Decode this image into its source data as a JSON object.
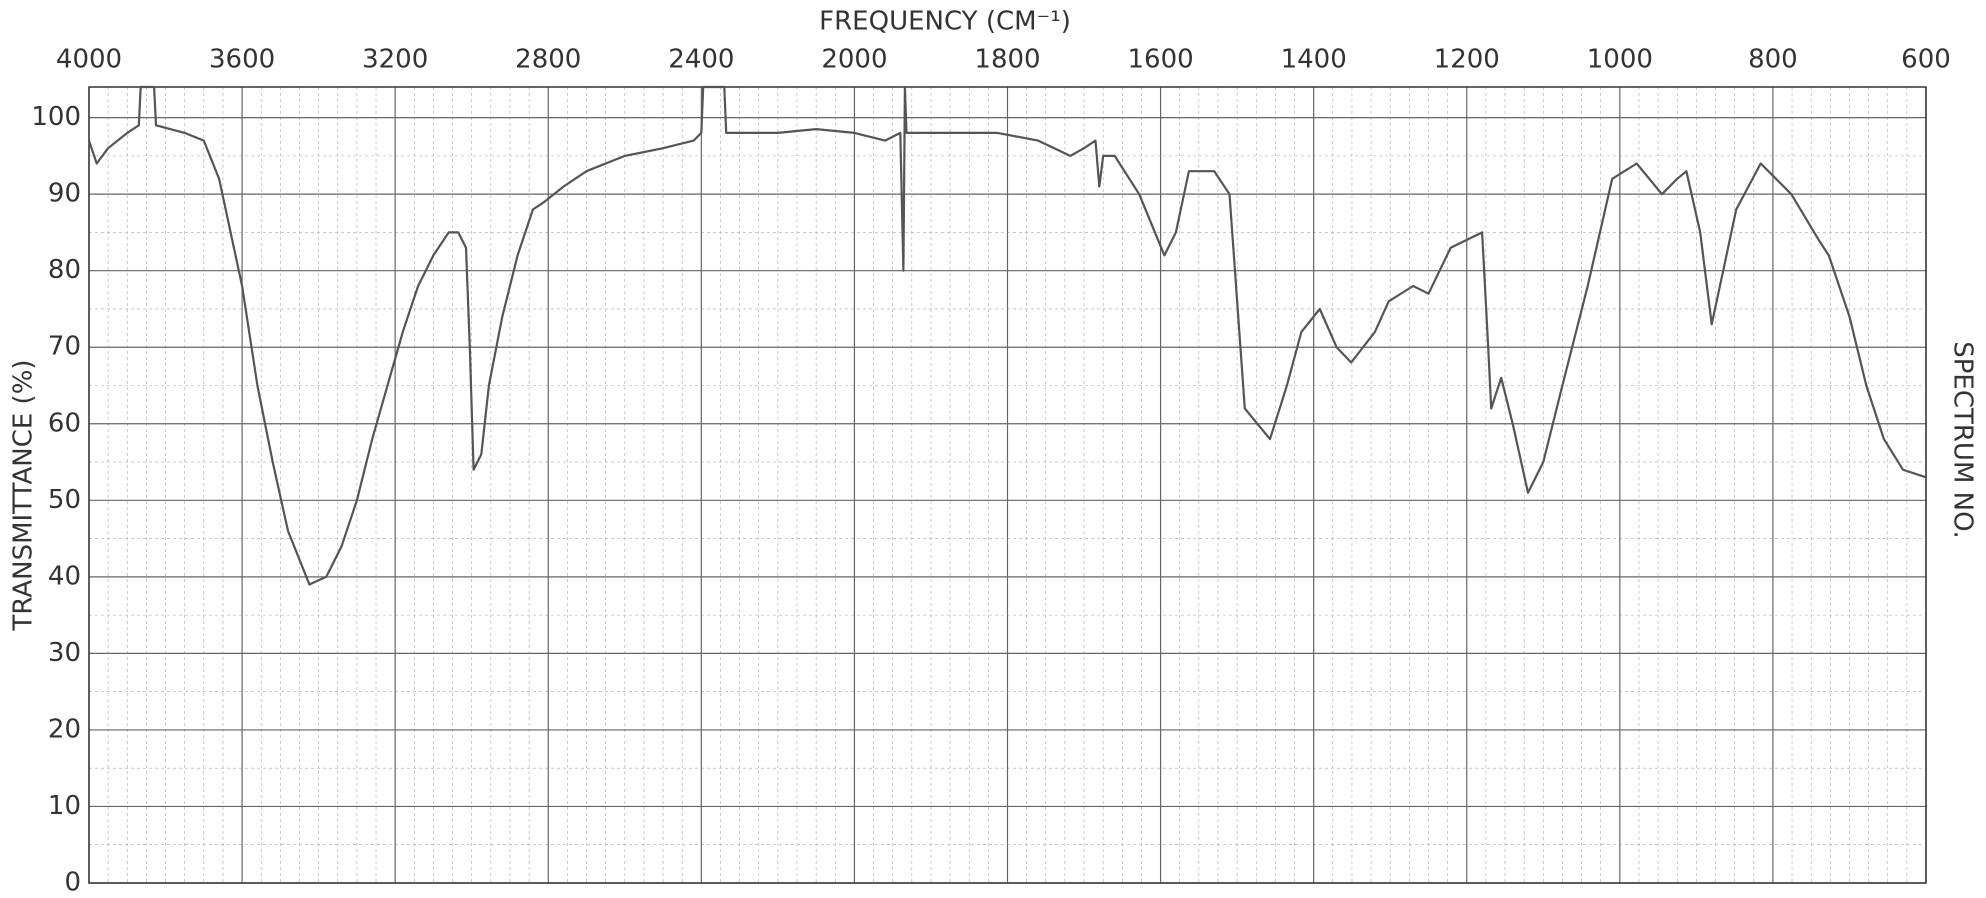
{
  "chart_data": {
    "type": "line",
    "title": "FREQUENCY (CM⁻¹)",
    "y_label": "TRANSMITTANCE (%)",
    "side_label": "SPECTRUM NO.",
    "xlim": [
      4000,
      600
    ],
    "xticks": [
      4000,
      3600,
      3200,
      2800,
      2400,
      2000,
      1800,
      1600,
      1400,
      1200,
      1000,
      800,
      600
    ],
    "ylim": [
      0,
      104
    ],
    "yticks": [
      0,
      10,
      20,
      30,
      40,
      50,
      60,
      70,
      80,
      90,
      100
    ],
    "grid": true,
    "x": [
      4000,
      3980,
      3950,
      3900,
      3870,
      3865,
      3830,
      3825,
      3750,
      3700,
      3660,
      3630,
      3600,
      3560,
      3520,
      3480,
      3440,
      3424,
      3380,
      3340,
      3300,
      3260,
      3220,
      3180,
      3140,
      3100,
      3060,
      3035,
      3015,
      3005,
      2995,
      2975,
      2955,
      2920,
      2880,
      2840,
      2810,
      2760,
      2700,
      2600,
      2500,
      2420,
      2400,
      2395,
      2340,
      2335,
      2300,
      2200,
      2100,
      2000,
      1960,
      1940,
      1936,
      1934,
      1932,
      1930,
      1900,
      1850,
      1813,
      1760,
      1718,
      1700,
      1685,
      1680,
      1675,
      1660,
      1628,
      1595,
      1580,
      1563,
      1540,
      1530,
      1510,
      1490,
      1457,
      1435,
      1416,
      1392,
      1370,
      1351,
      1320,
      1302,
      1270,
      1250,
      1221,
      1180,
      1172,
      1168,
      1155,
      1140,
      1120,
      1100,
      1075,
      1042,
      1010,
      978,
      945,
      925,
      913,
      895,
      880,
      865,
      848,
      816,
      776,
      740,
      727,
      700,
      678,
      655,
      630,
      600
    ],
    "series": [
      {
        "name": "Transmittance",
        "color": "#555555",
        "values": [
          97,
          94,
          96,
          98,
          99,
          104,
          104,
          99,
          98,
          97,
          92,
          85,
          78,
          65,
          55,
          46,
          41,
          39,
          40,
          44,
          50,
          58,
          65,
          72,
          78,
          82,
          85,
          85,
          83,
          70,
          54,
          56,
          65,
          74,
          82,
          88,
          89,
          91,
          93,
          95,
          96,
          97,
          98,
          104,
          104,
          98,
          98,
          98,
          98.5,
          98,
          97,
          98,
          80,
          104,
          98,
          98,
          98,
          98,
          98,
          97,
          95,
          96,
          97,
          91,
          95,
          95,
          90,
          82,
          85,
          93,
          93,
          93,
          90,
          62,
          58,
          65,
          72,
          75,
          70,
          68,
          72,
          76,
          78,
          77,
          83,
          85,
          70,
          62,
          66,
          60,
          51,
          55,
          65,
          78,
          92,
          94,
          90,
          92,
          93,
          85,
          73,
          80,
          88,
          94,
          90,
          84,
          82,
          74,
          65,
          58,
          54,
          53
        ]
      }
    ]
  }
}
